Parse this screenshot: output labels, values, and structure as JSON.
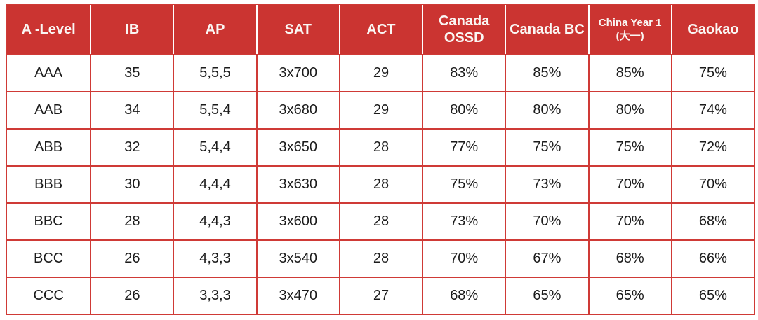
{
  "chart_data": {
    "type": "table",
    "title": "",
    "columns": [
      "A -Level",
      "IB",
      "AP",
      "SAT",
      "ACT",
      "Canada OSSD",
      "Canada BC",
      "China Year 1 (大一)",
      "Gaokao"
    ],
    "rows": [
      [
        "AAA",
        "35",
        "5,5,5",
        "3x700",
        "29",
        "83%",
        "85%",
        "85%",
        "75%"
      ],
      [
        "AAB",
        "34",
        "5,5,4",
        "3x680",
        "29",
        "80%",
        "80%",
        "80%",
        "74%"
      ],
      [
        "ABB",
        "32",
        "5,4,4",
        "3x650",
        "28",
        "77%",
        "75%",
        "75%",
        "72%"
      ],
      [
        "BBB",
        "30",
        "4,4,4",
        "3x630",
        "28",
        "75%",
        "73%",
        "70%",
        "70%"
      ],
      [
        "BBC",
        "28",
        "4,4,3",
        "3x600",
        "28",
        "73%",
        "70%",
        "70%",
        "68%"
      ],
      [
        "BCC",
        "26",
        "4,3,3",
        "3x540",
        "28",
        "70%",
        "67%",
        "68%",
        "66%"
      ],
      [
        "CCC",
        "26",
        "3,3,3",
        "3x470",
        "27",
        "68%",
        "65%",
        "65%",
        "65%"
      ]
    ],
    "layout": {
      "grid": "all-cell-borders",
      "header_position": "top-row",
      "column_count": 9,
      "row_count": 7
    }
  },
  "table": {
    "header_cells": [
      {
        "lines": [
          "A -Level"
        ],
        "small": false
      },
      {
        "lines": [
          "IB"
        ],
        "small": false
      },
      {
        "lines": [
          "AP"
        ],
        "small": false
      },
      {
        "lines": [
          "SAT"
        ],
        "small": false
      },
      {
        "lines": [
          "ACT"
        ],
        "small": false
      },
      {
        "lines": [
          "Canada",
          "OSSD"
        ],
        "small": false
      },
      {
        "lines": [
          "Canada BC"
        ],
        "small": false
      },
      {
        "lines": [
          "China Year 1",
          "(大一)"
        ],
        "small": true
      },
      {
        "lines": [
          "Gaokao"
        ],
        "small": false
      }
    ],
    "colors": {
      "header_bg": "#cb3431",
      "border": "#cf3a36",
      "header_text": "#faf6f3",
      "body_text": "#1b1b1b",
      "background": "#ffffff"
    }
  }
}
